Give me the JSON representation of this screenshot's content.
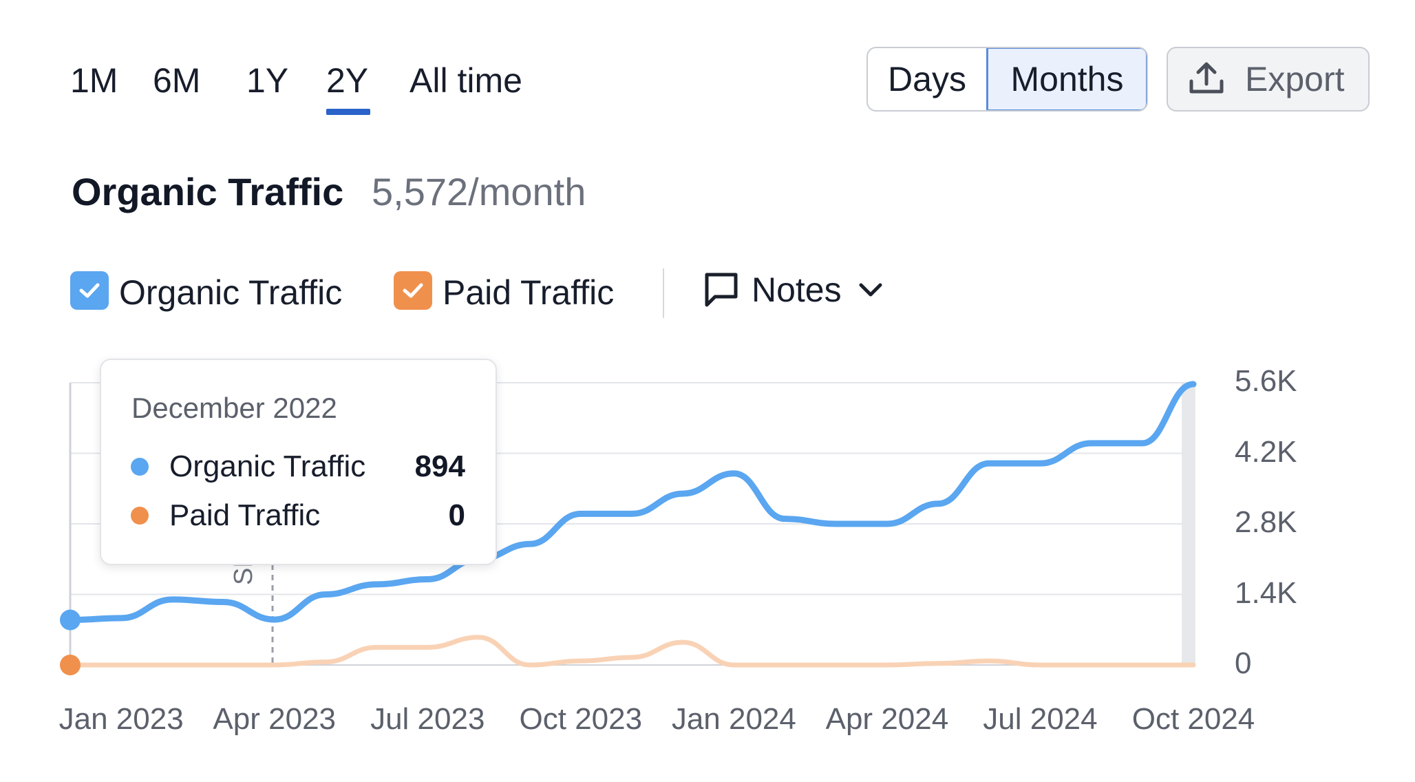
{
  "range_tabs": [
    {
      "label": "1M",
      "active": false
    },
    {
      "label": "6M",
      "active": false
    },
    {
      "label": "1Y",
      "active": false
    },
    {
      "label": "2Y",
      "active": true
    },
    {
      "label": "All time",
      "active": false
    }
  ],
  "granularity": {
    "days_label": "Days",
    "months_label": "Months",
    "selected": "Months"
  },
  "export": {
    "label": "Export",
    "icon": "upload-icon"
  },
  "header": {
    "title": "Organic Traffic",
    "value": "5,572/month"
  },
  "legend": {
    "items": [
      {
        "label": "Organic Traffic",
        "checked": true,
        "color": "#5aa6f0"
      },
      {
        "label": "Paid Traffic",
        "checked": true,
        "color": "#f0904d"
      }
    ],
    "notes_label": "Notes",
    "notes_icon": "comment-icon"
  },
  "tooltip": {
    "date": "December 2022",
    "rows": [
      {
        "name": "Organic Traffic",
        "value": "894",
        "color": "#5aa6f0"
      },
      {
        "name": "Paid Traffic",
        "value": "0",
        "color": "#f0904d"
      }
    ]
  },
  "annotation": {
    "label": "SE",
    "date": "Apr 2023"
  },
  "chart_data": {
    "type": "line",
    "x": [
      "Dec 2022",
      "Jan 2023",
      "Feb 2023",
      "Mar 2023",
      "Apr 2023",
      "May 2023",
      "Jun 2023",
      "Jul 2023",
      "Aug 2023",
      "Sep 2023",
      "Oct 2023",
      "Nov 2023",
      "Dec 2023",
      "Jan 2024",
      "Feb 2024",
      "Mar 2024",
      "Apr 2024",
      "May 2024",
      "Jun 2024",
      "Jul 2024",
      "Aug 2024",
      "Sep 2024",
      "Oct 2024"
    ],
    "series": [
      {
        "name": "Organic Traffic",
        "color": "#5aa6f0",
        "values": [
          894,
          930,
          1300,
          1250,
          900,
          1400,
          1600,
          1700,
          2100,
          2400,
          3000,
          3000,
          3400,
          3800,
          2900,
          2800,
          2800,
          3200,
          4000,
          4000,
          4400,
          4400,
          5572
        ]
      },
      {
        "name": "Paid Traffic",
        "color": "#f9d2b5",
        "values": [
          0,
          0,
          0,
          0,
          0,
          60,
          350,
          350,
          550,
          0,
          80,
          150,
          450,
          0,
          0,
          0,
          0,
          30,
          80,
          0,
          0,
          0,
          0
        ]
      }
    ],
    "x_tick_labels": [
      "Jan 2023",
      "Apr 2023",
      "Jul 2023",
      "Oct 2023",
      "Jan 2024",
      "Apr 2024",
      "Jul 2024",
      "Oct 2024"
    ],
    "y_tick_labels": [
      "0",
      "1.4K",
      "2.8K",
      "4.2K",
      "5.6K"
    ],
    "ylim": [
      0,
      5600
    ],
    "y_axis_side": "right",
    "grid": true
  }
}
